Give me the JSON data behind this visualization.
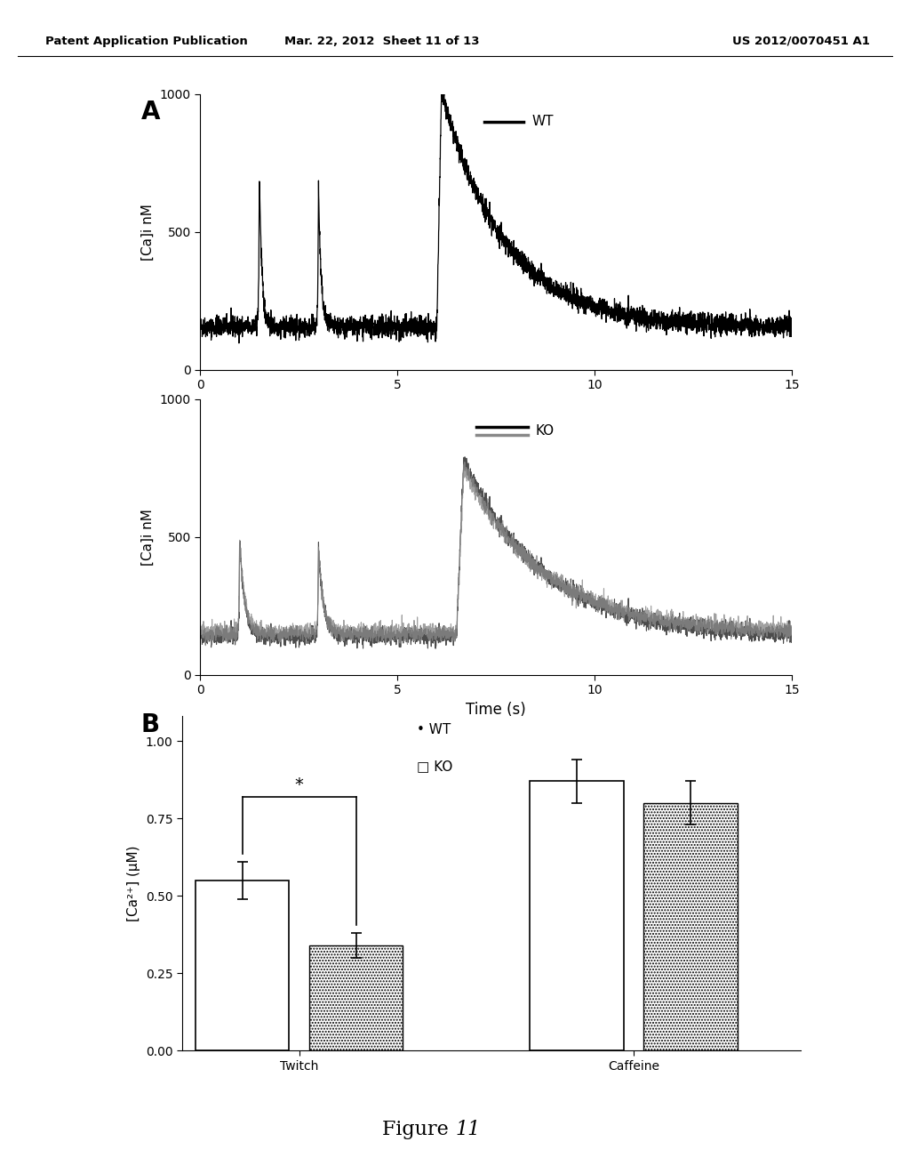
{
  "header_left": "Patent Application Publication",
  "header_mid": "Mar. 22, 2012  Sheet 11 of 13",
  "header_right": "US 2012/0070451 A1",
  "panel_A_label": "A",
  "panel_B_label": "B",
  "figure_label": "Figure ",
  "figure_label_italic": "11",
  "wt_legend": "WT",
  "ko_legend": "KO",
  "ylabel_A1": "[Ca]i nM",
  "ylabel_A2": "[Ca]i nM",
  "xlabel_A2": "Time (s)",
  "xlim": [
    0,
    15
  ],
  "ylim_A1": [
    0,
    1000
  ],
  "ylim_A2": [
    0,
    1000
  ],
  "xticks": [
    0,
    5,
    10,
    15
  ],
  "yticks_A1": [
    0,
    500,
    1000
  ],
  "yticks_A2": [
    0,
    500,
    1000
  ],
  "bar_ylabel": "[Ca²⁺] (μM)",
  "bar_categories": [
    "Twitch",
    "Caffeine"
  ],
  "bar_wt_values": [
    0.55,
    0.87
  ],
  "bar_ko_values": [
    0.34,
    0.8
  ],
  "bar_wt_errors": [
    0.06,
    0.07
  ],
  "bar_ko_errors": [
    0.04,
    0.07
  ],
  "bar_yticks": [
    0.0,
    0.25,
    0.5,
    0.75,
    1.0
  ],
  "significance_star": "*",
  "line_color_wt": "black",
  "line_color_ko1": "black",
  "line_color_ko2": "gray",
  "wt_lw": 0.9,
  "ko_lw": 0.8
}
